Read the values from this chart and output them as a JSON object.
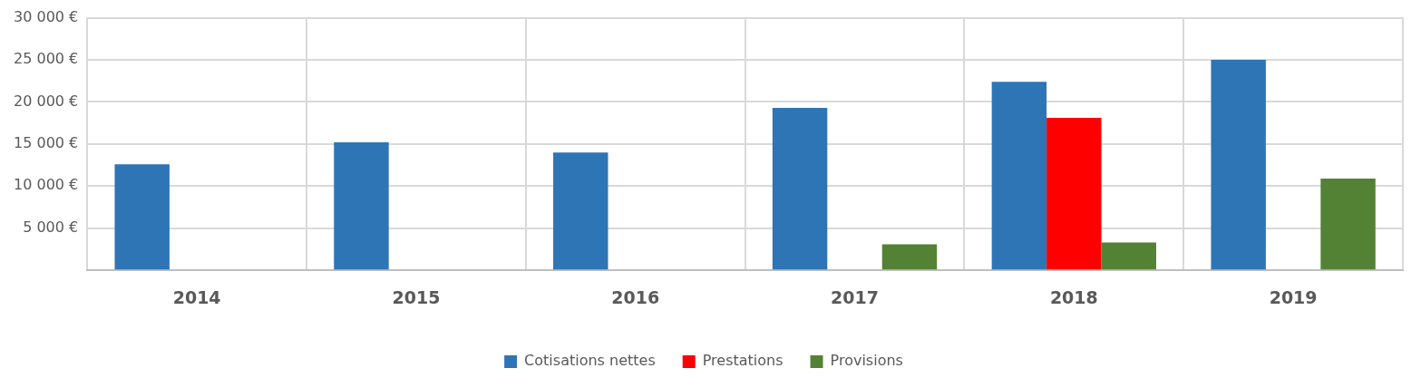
{
  "chart_data": {
    "type": "bar",
    "categories": [
      "2014",
      "2015",
      "2016",
      "2017",
      "2018",
      "2019"
    ],
    "series": [
      {
        "name": "Cotisations nettes",
        "color": "#2e75b6",
        "values": [
          12600,
          15200,
          14000,
          19300,
          22400,
          25000
        ]
      },
      {
        "name": "Prestations",
        "color": "#ff0000",
        "values": [
          0,
          0,
          0,
          0,
          18100,
          0
        ]
      },
      {
        "name": "Provisions",
        "color": "#548235",
        "values": [
          0,
          0,
          null,
          3100,
          3300,
          10900
        ]
      }
    ],
    "ylim": [
      0,
      30000
    ],
    "yticks": [
      {
        "value": 0,
        "label": null
      },
      {
        "value": 5000,
        "label": "5 000 €"
      },
      {
        "value": 10000,
        "label": "10 000 €"
      },
      {
        "value": 15000,
        "label": "15 000 €"
      },
      {
        "value": 20000,
        "label": "20 000 €"
      },
      {
        "value": 25000,
        "label": "25 000 €"
      },
      {
        "value": 30000,
        "label": "30 000 €"
      }
    ],
    "grid": true,
    "legend": "bottom"
  }
}
